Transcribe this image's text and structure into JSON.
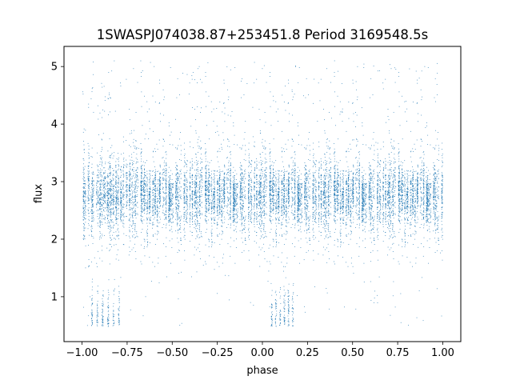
{
  "chart_data": {
    "type": "scatter",
    "title": "1SWASPJ074038.87+253451.8 Period 3169548.5s",
    "xlabel": "phase",
    "ylabel": "flux",
    "xlim": [
      -1.1,
      1.1
    ],
    "ylim": [
      0.22,
      5.35
    ],
    "xticks": [
      -1.0,
      -0.75,
      -0.5,
      -0.25,
      0.0,
      0.25,
      0.5,
      0.75,
      1.0
    ],
    "xtick_labels": [
      "−1.00",
      "−0.75",
      "−0.50",
      "−0.25",
      "0.00",
      "0.25",
      "0.50",
      "0.75",
      "1.00"
    ],
    "yticks": [
      1,
      2,
      3,
      4,
      5
    ],
    "ytick_labels": [
      "1",
      "2",
      "3",
      "4",
      "5"
    ],
    "grid": false,
    "marker_color": "#1f77b4",
    "description": "Phase-folded light curve: dense band of points between flux ~2.1 and ~3.5 across phase -1 to 1, with sparse outliers up to ~5 and low-flux clusters near 0.5-1.3 around phases -0.95..-0.8 and 0.05..0.18.",
    "series": [
      {
        "x_range": [
          -1.0,
          1.0
        ],
        "band_center": 2.75,
        "band_spread": 0.3,
        "low_flux_clusters": [
          {
            "phase_range": [
              -0.96,
              -0.78
            ],
            "flux_range": [
              0.48,
              1.35
            ]
          },
          {
            "phase_range": [
              0.04,
              0.18
            ],
            "flux_range": [
              0.48,
              1.35
            ]
          }
        ],
        "outlier_max_flux": 5.1,
        "sample_points": [
          {
            "x": -0.97,
            "y": 0.5
          },
          {
            "x": -0.82,
            "y": 1.3
          },
          {
            "x": -0.6,
            "y": 5.0
          },
          {
            "x": -0.35,
            "y": 5.0
          },
          {
            "x": 0.05,
            "y": 0.5
          },
          {
            "x": 0.4,
            "y": 5.1
          },
          {
            "x": 0.9,
            "y": 5.0
          },
          {
            "x": 0.0,
            "y": 2.75
          },
          {
            "x": 0.5,
            "y": 2.8
          },
          {
            "x": -0.5,
            "y": 2.7
          }
        ]
      }
    ]
  }
}
